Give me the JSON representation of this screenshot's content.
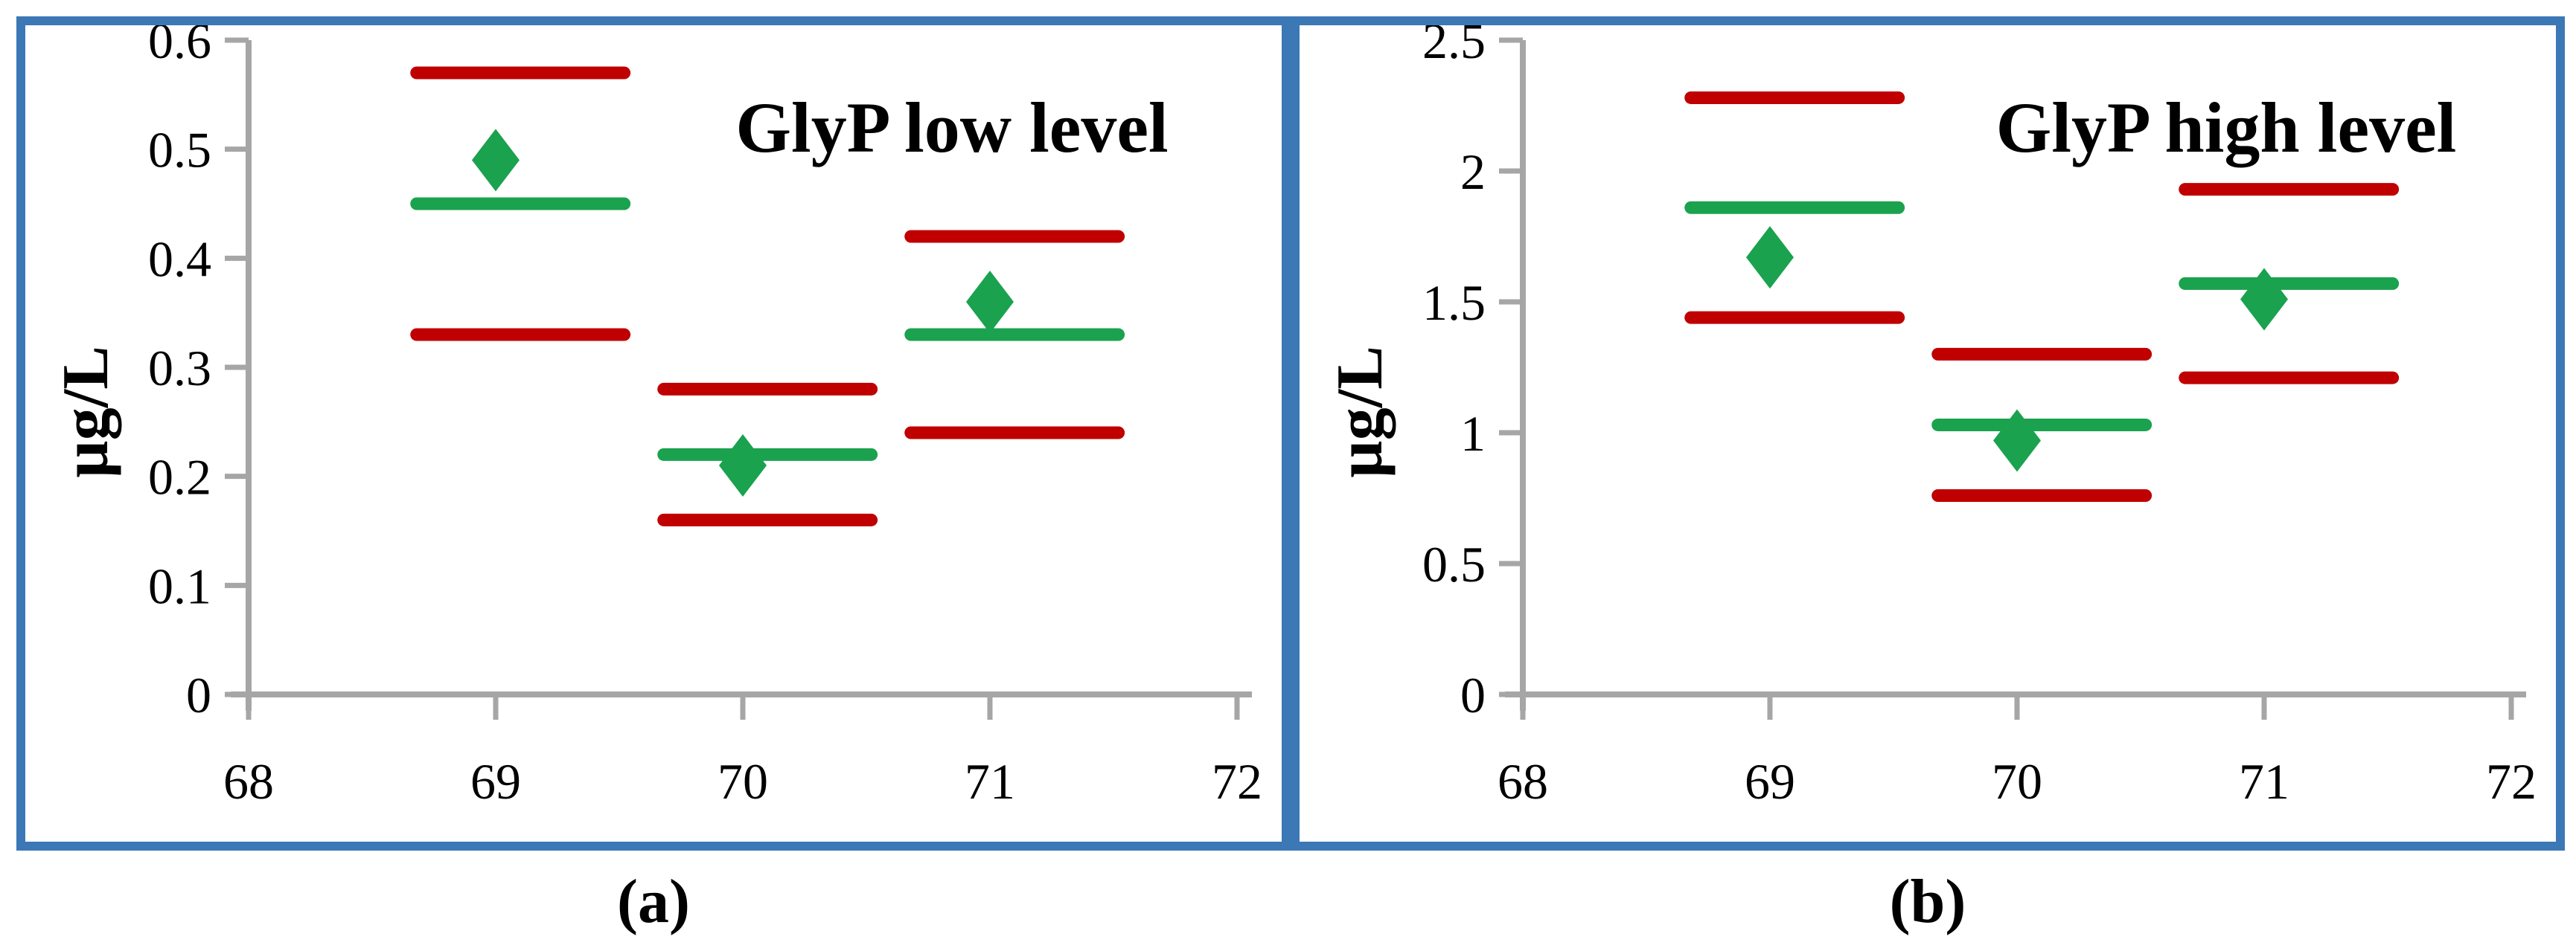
{
  "figure": {
    "border_color": "#3B78B5",
    "background_color": "#FFFFFF",
    "axis_color": "#A6A6A6",
    "red_color": "#C00000",
    "green_color": "#1AA24E"
  },
  "chart_data": [
    {
      "type": "scatter",
      "panel_label": "a",
      "caption": "(a)",
      "title": "GlyP low level",
      "ylabel": "µg/L",
      "xlabel": "",
      "xlim": [
        68,
        72
      ],
      "ylim": [
        0,
        0.6
      ],
      "xtick_labels": [
        "68",
        "69",
        "70",
        "71",
        "72"
      ],
      "yticks": [
        0,
        0.1,
        0.2,
        0.3,
        0.4,
        0.5,
        0.6
      ],
      "ytick_labels": [
        "0",
        "0.1",
        "0.2",
        "0.3",
        "0.4",
        "0.5",
        "0.6"
      ],
      "grid": false,
      "legend_position": "none",
      "x": [
        69,
        70,
        71
      ],
      "series": [
        {
          "name": "upper-limit-line",
          "marker": "hline",
          "color": "#C00000",
          "values": [
            0.57,
            0.28,
            0.42
          ]
        },
        {
          "name": "assigned-value-line",
          "marker": "hline",
          "color": "#1AA24E",
          "values": [
            0.45,
            0.22,
            0.33
          ]
        },
        {
          "name": "lower-limit-line",
          "marker": "hline",
          "color": "#C00000",
          "values": [
            0.33,
            0.16,
            0.24
          ]
        },
        {
          "name": "result-diamond",
          "marker": "diamond",
          "color": "#1AA24E",
          "values": [
            0.49,
            0.21,
            0.36
          ]
        }
      ]
    },
    {
      "type": "scatter",
      "panel_label": "b",
      "caption": "(b)",
      "title": "GlyP high level",
      "ylabel": "µg/L",
      "xlabel": "",
      "xlim": [
        68,
        72
      ],
      "ylim": [
        0,
        2.5
      ],
      "xtick_labels": [
        "68",
        "69",
        "70",
        "71",
        "72"
      ],
      "yticks": [
        0,
        0.5,
        1,
        1.5,
        2,
        2.5
      ],
      "ytick_labels": [
        "0",
        "0.5",
        "1",
        "1.5",
        "2",
        "2.5"
      ],
      "grid": false,
      "legend_position": "none",
      "x": [
        69,
        70,
        71
      ],
      "series": [
        {
          "name": "upper-limit-line",
          "marker": "hline",
          "color": "#C00000",
          "values": [
            2.28,
            1.3,
            1.93
          ]
        },
        {
          "name": "assigned-value-line",
          "marker": "hline",
          "color": "#1AA24E",
          "values": [
            1.86,
            1.03,
            1.57
          ]
        },
        {
          "name": "lower-limit-line",
          "marker": "hline",
          "color": "#C00000",
          "values": [
            1.44,
            0.76,
            1.21
          ]
        },
        {
          "name": "result-diamond",
          "marker": "diamond",
          "color": "#1AA24E",
          "values": [
            1.67,
            0.97,
            1.51
          ]
        }
      ]
    }
  ]
}
